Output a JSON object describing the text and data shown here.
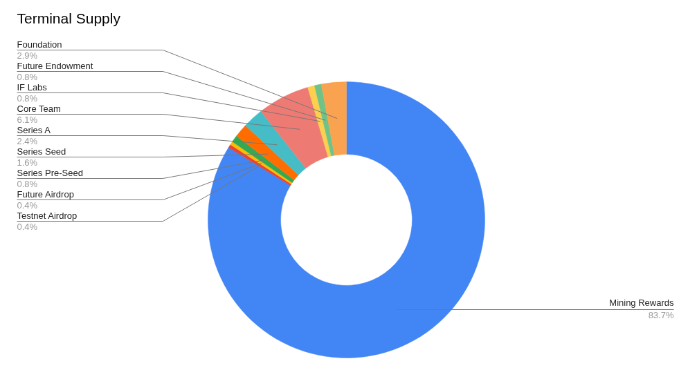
{
  "chart_data": {
    "type": "donut",
    "title": "Terminal Supply",
    "categories": [
      "Mining Rewards",
      "Testnet Airdrop",
      "Future Airdrop",
      "Series Pre-Seed",
      "Series Seed",
      "Series A",
      "Core Team",
      "IF Labs",
      "Future Endowment",
      "Foundation"
    ],
    "values": [
      83.7,
      0.4,
      0.4,
      0.8,
      1.6,
      2.4,
      6.1,
      0.8,
      0.8,
      2.9
    ],
    "colors": [
      "#4285f4",
      "#ea4335",
      "#fbbc04",
      "#34a853",
      "#ff6d01",
      "#46bdc6",
      "#ee7b73",
      "#fcd04f",
      "#71c287",
      "#f9a24f"
    ],
    "value_labels": [
      "83.7%",
      "0.4%",
      "0.4%",
      "0.8%",
      "1.6%",
      "2.4%",
      "6.1%",
      "0.8%",
      "0.8%",
      "2.9%"
    ]
  }
}
